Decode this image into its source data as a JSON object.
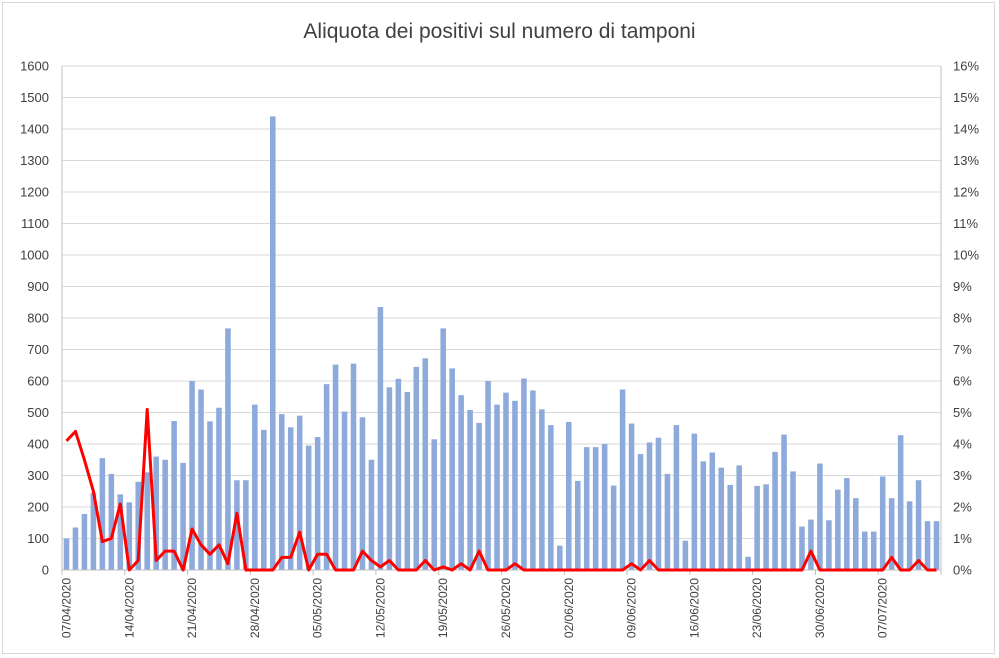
{
  "chart_data": {
    "type": "bar",
    "title": "Aliquota dei positivi sul numero di tamponi",
    "xlabel": "",
    "ylabel": "",
    "ylim": [
      0,
      1600
    ],
    "y2lim": [
      0,
      16
    ],
    "yticks": [
      "0",
      "100",
      "200",
      "300",
      "400",
      "500",
      "600",
      "700",
      "800",
      "900",
      "1000",
      "1100",
      "1200",
      "1300",
      "1400",
      "1500",
      "1600"
    ],
    "y2ticks": [
      "0%",
      "1%",
      "2%",
      "3%",
      "4%",
      "5%",
      "6%",
      "7%",
      "8%",
      "9%",
      "10%",
      "11%",
      "12%",
      "13%",
      "14%",
      "15%",
      "16%"
    ],
    "xtick_labels": [
      "07/04/2020",
      "14/04/2020",
      "21/04/2020",
      "28/04/2020",
      "05/05/2020",
      "12/05/2020",
      "19/05/2020",
      "26/05/2020",
      "02/06/2020",
      "09/06/2020",
      "16/06/2020",
      "23/06/2020",
      "30/06/2020",
      "07/07/2020"
    ],
    "grid": true,
    "colors": {
      "bars": "#8eaadb",
      "line": "#ff0000",
      "grid": "#d9d9d9",
      "axis": "#bfbfbf"
    },
    "series": [
      {
        "type": "bar",
        "axis": "left",
        "values": [
          100,
          135,
          178,
          245,
          355,
          305,
          240,
          215,
          280,
          310,
          360,
          350,
          473,
          340,
          600,
          573,
          472,
          515,
          767,
          285,
          285,
          525,
          445,
          1440,
          495,
          453,
          490,
          395,
          422,
          590,
          652,
          503,
          655,
          485,
          350,
          835,
          580,
          607,
          565,
          645,
          672,
          415,
          767,
          640,
          555,
          508,
          467,
          600,
          525,
          563,
          537,
          608,
          570,
          510,
          460,
          77,
          470,
          283,
          390,
          390,
          400,
          268,
          573,
          465,
          368,
          405,
          420,
          305,
          460,
          93,
          433,
          345,
          373,
          325,
          270,
          332,
          42,
          267,
          272,
          375,
          430,
          313,
          138,
          160,
          338,
          158,
          255,
          292,
          228,
          122,
          122,
          297,
          228,
          428,
          218,
          285,
          155,
          155
        ]
      },
      {
        "type": "line",
        "axis": "right",
        "values": [
          4.1,
          4.4,
          3.5,
          2.5,
          0.9,
          1.0,
          2.1,
          0.0,
          0.3,
          5.1,
          0.3,
          0.6,
          0.6,
          0.0,
          1.3,
          0.8,
          0.5,
          0.8,
          0.2,
          1.8,
          0.0,
          0.0,
          0.0,
          0.0,
          0.4,
          0.4,
          1.2,
          0.0,
          0.5,
          0.5,
          0.0,
          0.0,
          0.0,
          0.6,
          0.3,
          0.1,
          0.3,
          0.0,
          0.0,
          0.0,
          0.3,
          0.0,
          0.1,
          0.0,
          0.2,
          0.0,
          0.6,
          0.0,
          0.0,
          0.0,
          0.2,
          0.0,
          0.0,
          0.0,
          0.0,
          0.0,
          0.0,
          0.0,
          0.0,
          0.0,
          0.0,
          0.0,
          0.0,
          0.2,
          0.0,
          0.3,
          0.0,
          0.0,
          0.0,
          0.0,
          0.0,
          0.0,
          0.0,
          0.0,
          0.0,
          0.0,
          0.0,
          0.0,
          0.0,
          0.0,
          0.0,
          0.0,
          0.0,
          0.6,
          0.0,
          0.0,
          0.0,
          0.0,
          0.0,
          0.0,
          0.0,
          0.0,
          0.4,
          0.0,
          0.0,
          0.3,
          0.0,
          0.0
        ]
      }
    ]
  }
}
